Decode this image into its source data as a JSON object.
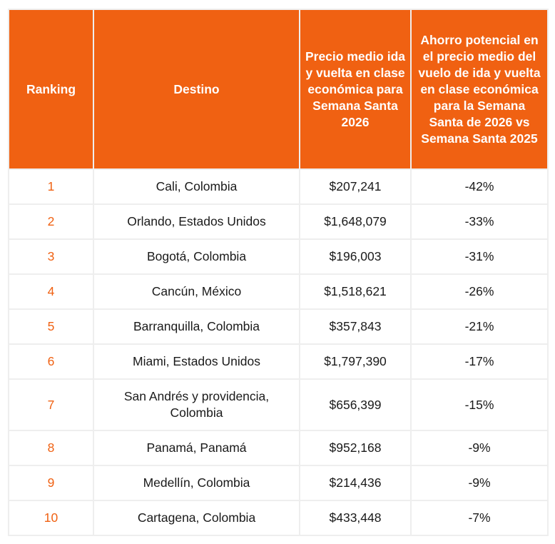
{
  "table": {
    "headers": [
      "Ranking",
      "Destino",
      "Precio medio ida y vuelta en clase económica para Semana Santa 2026",
      "Ahorro potencial en el precio medio del vuelo de ida y vuelta en clase económica para la Semana Santa de 2026 vs Semana Santa 2025"
    ],
    "rows": [
      {
        "rank": "1",
        "destination": "Cali, Colombia",
        "price": "$207,241",
        "savings": "-42%"
      },
      {
        "rank": "2",
        "destination": "Orlando, Estados Unidos",
        "price": "$1,648,079",
        "savings": "-33%"
      },
      {
        "rank": "3",
        "destination": "Bogotá, Colombia",
        "price": "$196,003",
        "savings": "-31%"
      },
      {
        "rank": "4",
        "destination": "Cancún, México",
        "price": "$1,518,621",
        "savings": "-26%"
      },
      {
        "rank": "5",
        "destination": "Barranquilla, Colombia",
        "price": "$357,843",
        "savings": "-21%"
      },
      {
        "rank": "6",
        "destination": "Miami, Estados Unidos",
        "price": "$1,797,390",
        "savings": "-17%"
      },
      {
        "rank": "7",
        "destination": "San Andrés y providencia, Colombia",
        "price": "$656,399",
        "savings": "-15%"
      },
      {
        "rank": "8",
        "destination": "Panamá, Panamá",
        "price": "$952,168",
        "savings": "-9%"
      },
      {
        "rank": "9",
        "destination": "Medellín, Colombia",
        "price": "$214,436",
        "savings": "-9%"
      },
      {
        "rank": "10",
        "destination": "Cartagena, Colombia",
        "price": "$433,448",
        "savings": "-7%"
      }
    ]
  },
  "colors": {
    "header_bg": "#f06112",
    "header_text": "#ffffff",
    "rank_text": "#f06112",
    "grid": "#eeeeee"
  }
}
